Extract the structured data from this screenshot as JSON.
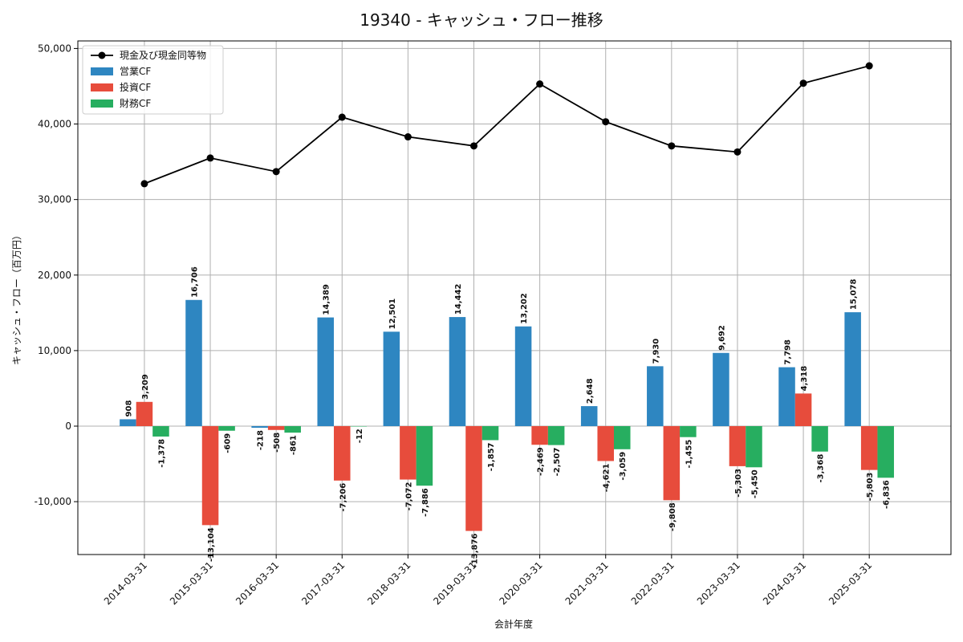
{
  "chart_data": {
    "type": "bar",
    "title": "19340 - キャッシュ・フロー推移",
    "xlabel": "会計年度",
    "ylabel": "キャッシュ・フロー（百万円）",
    "ylim": [
      -17000,
      51000
    ],
    "yticks": [
      -10000,
      0,
      10000,
      20000,
      30000,
      40000,
      50000
    ],
    "ytick_labels": [
      "-10,000",
      "0",
      "10,000",
      "20,000",
      "30,000",
      "40,000",
      "50,000"
    ],
    "grid": true,
    "legend_position": "top-left",
    "categories": [
      "2014-03-31",
      "2015-03-31",
      "2016-03-31",
      "2017-03-31",
      "2018-03-31",
      "2019-03-31",
      "2020-03-31",
      "2021-03-31",
      "2022-03-31",
      "2023-03-31",
      "2024-03-31",
      "2025-03-31"
    ],
    "line_series": {
      "name": "現金及び現金同等物",
      "color": "#000000",
      "values": [
        32100,
        35500,
        33700,
        40900,
        38300,
        37100,
        45300,
        40300,
        37100,
        36300,
        45400,
        47700
      ]
    },
    "series": [
      {
        "name": "営業CF",
        "color": "#2e86c1",
        "values": [
          908,
          16706,
          -218,
          14389,
          12501,
          14442,
          13202,
          2648,
          7930,
          9692,
          7798,
          15078
        ],
        "labels": [
          "908",
          "16,706",
          "-218",
          "14,389",
          "12,501",
          "14,442",
          "13,202",
          "2,648",
          "7,930",
          "9,692",
          "7,798",
          "15,078"
        ]
      },
      {
        "name": "投資CF",
        "color": "#e74c3c",
        "values": [
          3209,
          -13104,
          -508,
          -7206,
          -7072,
          -13876,
          -2469,
          -4621,
          -9808,
          -5303,
          4318,
          -5803
        ],
        "labels": [
          "3,209",
          "-13,104",
          "-508",
          "-7,206",
          "-7,072",
          "-13,876",
          "-2,469",
          "-4,621",
          "-9,808",
          "-5,303",
          "4,318",
          "-5,803"
        ]
      },
      {
        "name": "財務CF",
        "color": "#27ae60",
        "values": [
          -1378,
          -609,
          -861,
          -12,
          -7886,
          -1857,
          -2507,
          -3059,
          -1455,
          -5450,
          -3368,
          -6836
        ],
        "labels": [
          "-1,378",
          "-609",
          "-861",
          "-12",
          "-7,886",
          "-1,857",
          "-2,507",
          "-3,059",
          "-1,455",
          "-5,450",
          "-3,368",
          "-6,836"
        ]
      }
    ]
  }
}
